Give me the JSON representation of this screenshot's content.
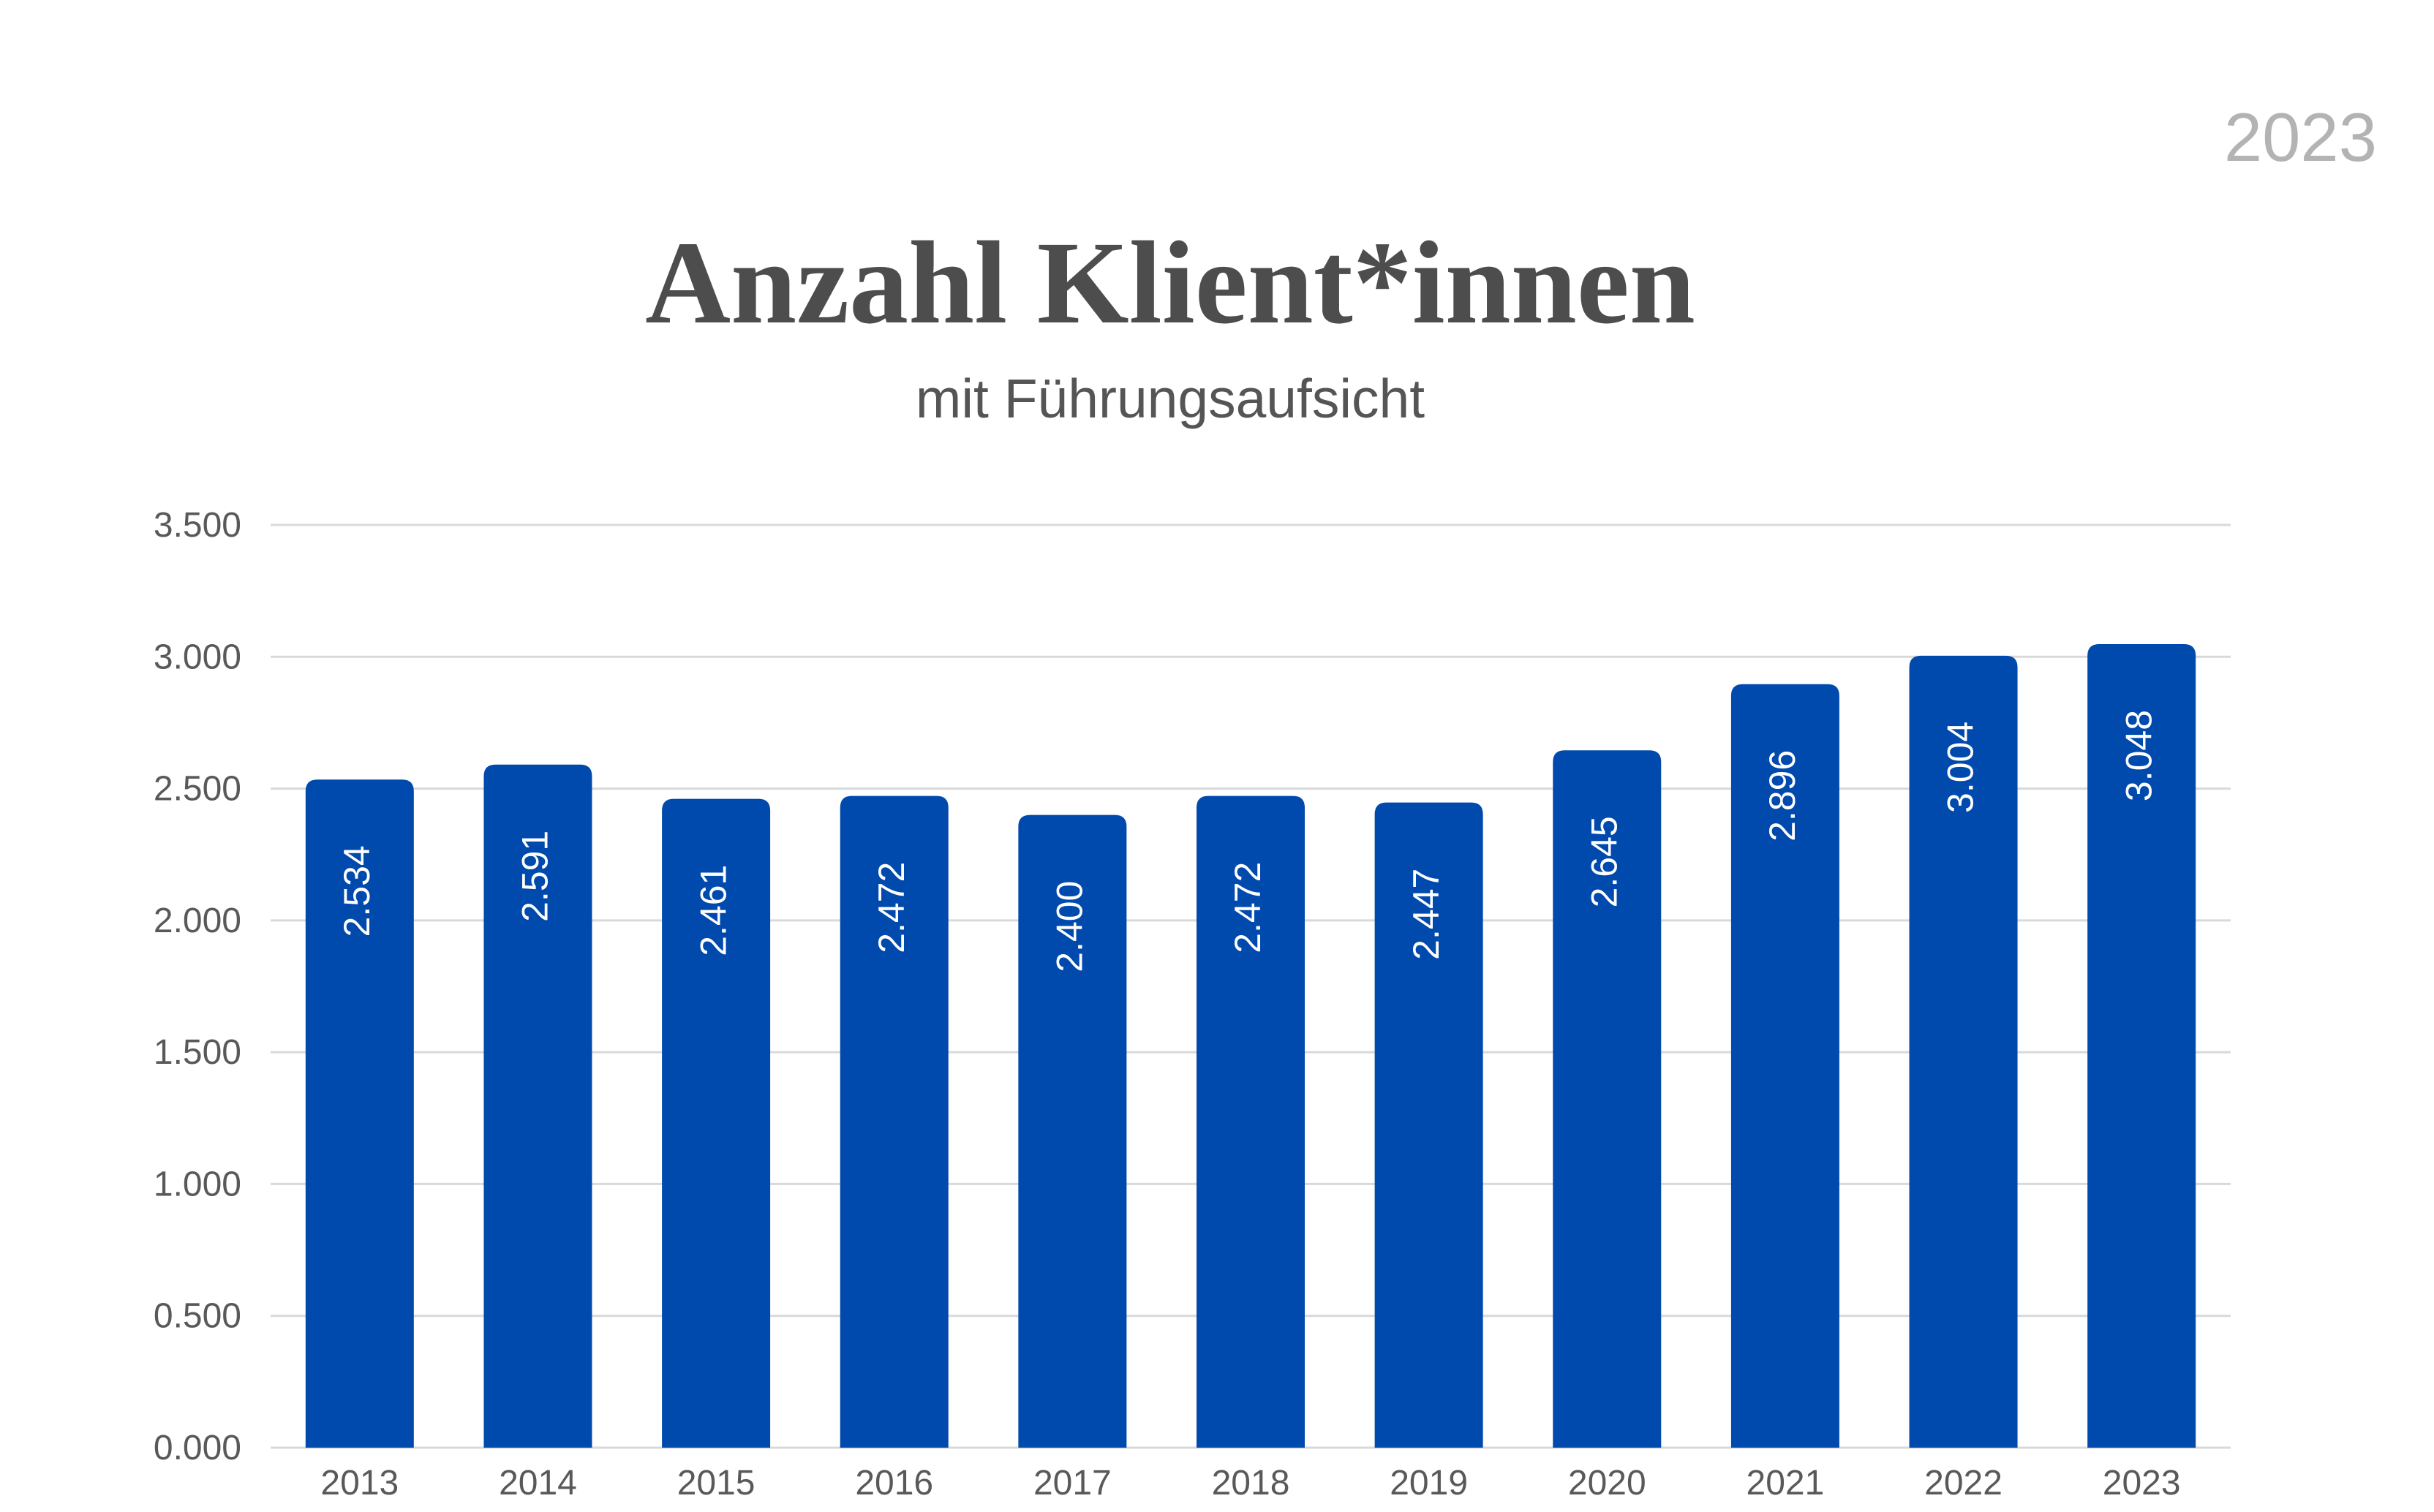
{
  "corner_year": "2023",
  "chart_data": {
    "type": "bar",
    "title": "Anzahl Klient*innen",
    "subtitle": "mit Führungsaufsicht",
    "categories": [
      "2013",
      "2014",
      "2015",
      "2016",
      "2017",
      "2018",
      "2019",
      "2020",
      "2021",
      "2022",
      "2023"
    ],
    "values": [
      2534,
      2591,
      2461,
      2472,
      2400,
      2472,
      2447,
      2645,
      2896,
      3004,
      3048
    ],
    "data_labels": [
      "2.534",
      "2.591",
      "2.461",
      "2.472",
      "2.400",
      "2.472",
      "2.447",
      "2.645",
      "2.896",
      "3.004",
      "3.048"
    ],
    "ylim": [
      0,
      3500
    ],
    "yticks": [
      0,
      500,
      1000,
      1500,
      2000,
      2500,
      3000,
      3500
    ],
    "ytick_labels": [
      "0.000",
      "0.500",
      "1.000",
      "1.500",
      "2.000",
      "2.500",
      "3.000",
      "3.500"
    ],
    "xlabel": "",
    "ylabel": "",
    "grid": true,
    "legend": false,
    "bar_color": "#004aad",
    "label_color": "#ffffff",
    "grid_color": "#d9d9d9",
    "tick_color": "#595959"
  }
}
